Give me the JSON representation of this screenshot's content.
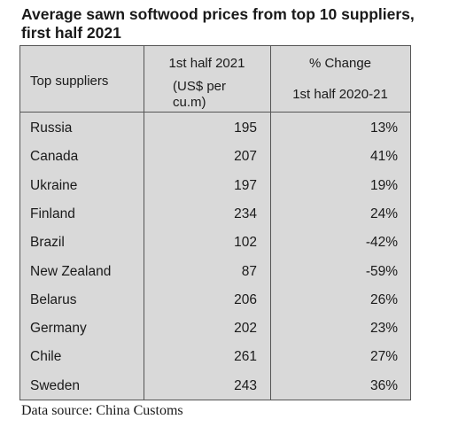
{
  "title": {
    "line1": "Average sawn softwood prices from top 10 suppliers,",
    "line2": "first half 2021"
  },
  "headers": {
    "supplier": "Top suppliers",
    "price_line1": "1st half 2021",
    "price_line2": "(US$ per",
    "price_line3": "cu.m)",
    "change_line1": "% Change",
    "change_line2": "1st half 2020-21"
  },
  "source": "Data source: China Customs",
  "chart_data": {
    "type": "table",
    "title": "Average sawn softwood prices from top 10 suppliers, first half 2021",
    "columns": [
      "Top suppliers",
      "1st half 2021 (US$ per cu.m)",
      "% Change 1st half 2020-21"
    ],
    "rows": [
      {
        "supplier": "Russia",
        "price": "195",
        "change": "13%"
      },
      {
        "supplier": "Canada",
        "price": "207",
        "change": "41%"
      },
      {
        "supplier": "Ukraine",
        "price": "197",
        "change": "19%"
      },
      {
        "supplier": "Finland",
        "price": "234",
        "change": "24%"
      },
      {
        "supplier": "Brazil",
        "price": "102",
        "change": "-42%"
      },
      {
        "supplier": "New Zealand",
        "price": "87",
        "change": "-59%"
      },
      {
        "supplier": "Belarus",
        "price": "206",
        "change": "26%"
      },
      {
        "supplier": "Germany",
        "price": "202",
        "change": "23%"
      },
      {
        "supplier": "Chile",
        "price": "261",
        "change": "27%"
      },
      {
        "supplier": "Sweden",
        "price": "243",
        "change": "36%"
      }
    ]
  }
}
